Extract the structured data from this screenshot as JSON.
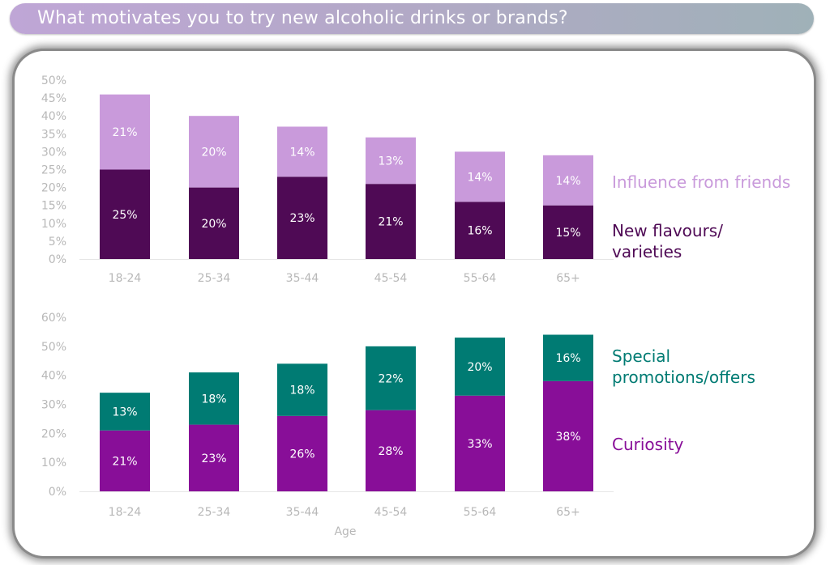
{
  "title": "What motivates you to try new alcoholic drinks or brands?",
  "chart_data": [
    {
      "type": "bar",
      "stacked": true,
      "categories": [
        "18-24",
        "25-34",
        "35-44",
        "45-54",
        "55-64",
        "65+"
      ],
      "series": [
        {
          "name": "New flavours/ varieties",
          "legend_lines": [
            "New flavours/",
            "varieties"
          ],
          "color": "#4F0A55",
          "values": [
            25,
            20,
            23,
            21,
            16,
            15
          ],
          "labels": [
            "25%",
            "20%",
            "23%",
            "21%",
            "16%",
            "15%"
          ]
        },
        {
          "name": "Influence from friends",
          "legend_lines": [
            "Influence from friends"
          ],
          "color": "#C99ADB",
          "values": [
            21,
            20,
            14,
            13,
            14,
            14
          ],
          "labels": [
            "21%",
            "20%",
            "14%",
            "13%",
            "14%",
            "14%"
          ]
        }
      ],
      "yticks": [
        "0%",
        "5%",
        "10%",
        "15%",
        "20%",
        "25%",
        "30%",
        "35%",
        "40%",
        "45%",
        "50%"
      ],
      "ylim": [
        0,
        50
      ],
      "grid": false,
      "legend_position": "right"
    },
    {
      "type": "bar",
      "stacked": true,
      "categories": [
        "18-24",
        "25-34",
        "35-44",
        "45-54",
        "55-64",
        "65+"
      ],
      "series": [
        {
          "name": "Curiosity",
          "legend_lines": [
            "Curiosity"
          ],
          "color": "#880E98",
          "values": [
            21,
            23,
            26,
            28,
            33,
            38
          ],
          "labels": [
            "21%",
            "23%",
            "26%",
            "28%",
            "33%",
            "38%"
          ]
        },
        {
          "name": "Special promotions/offers",
          "legend_lines": [
            "Special",
            "promotions/offers"
          ],
          "color": "#007B73",
          "values": [
            13,
            18,
            18,
            22,
            20,
            16
          ],
          "labels": [
            "13%",
            "18%",
            "18%",
            "22%",
            "20%",
            "16%"
          ]
        }
      ],
      "yticks": [
        "0%",
        "10%",
        "20%",
        "30%",
        "40%",
        "50%",
        "60%"
      ],
      "ylim": [
        0,
        60
      ],
      "xlabel": "Age",
      "grid": false,
      "legend_position": "right"
    }
  ]
}
